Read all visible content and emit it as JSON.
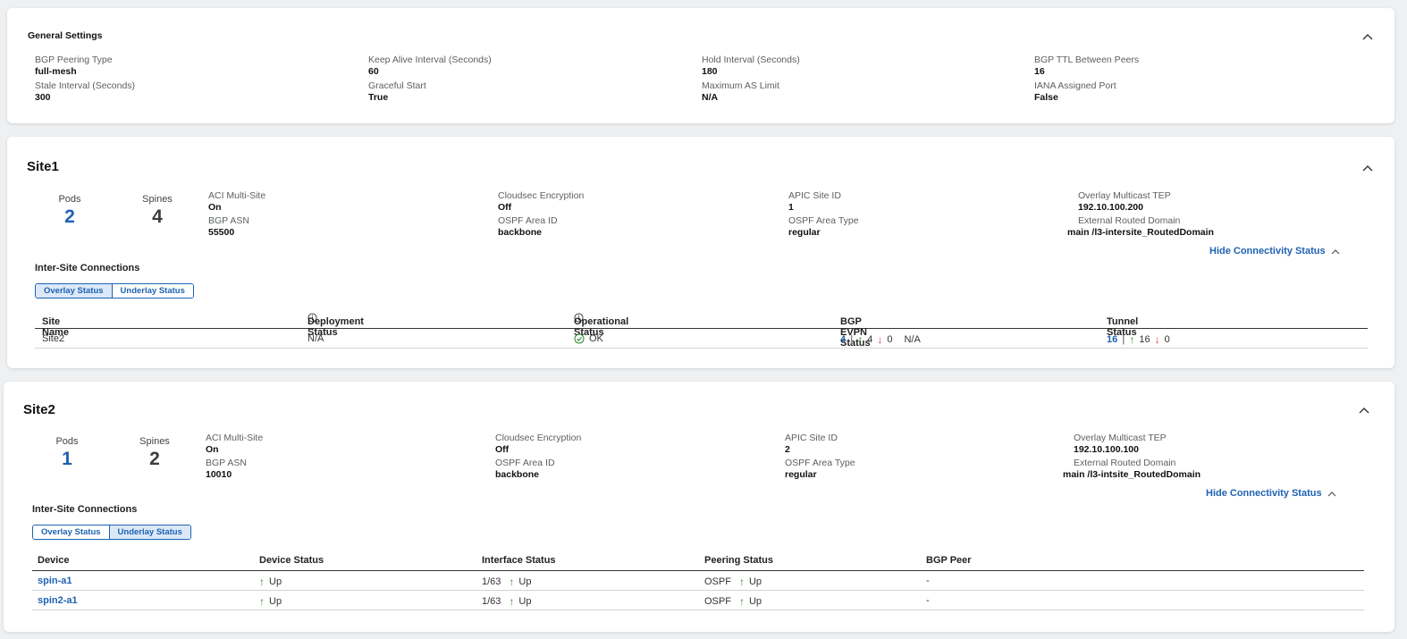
{
  "general": {
    "title": "General Settings",
    "fields": [
      {
        "label": "BGP Peering Type",
        "value": "full-mesh"
      },
      {
        "label": "Keep Alive Interval (Seconds)",
        "value": "60"
      },
      {
        "label": "Hold Interval (Seconds)",
        "value": "180"
      },
      {
        "label": "BGP TTL Between Peers",
        "value": "16"
      },
      {
        "label": "Stale Interval (Seconds)",
        "value": "300"
      },
      {
        "label": "Graceful Start",
        "value": "True"
      },
      {
        "label": "Maximum AS Limit",
        "value": "N/A"
      },
      {
        "label": "IANA Assigned Port",
        "value": "False"
      }
    ]
  },
  "site1": {
    "title": "Site1",
    "pods_label": "Pods",
    "pods": "2",
    "spines_label": "Spines",
    "spines": "4",
    "fields": [
      {
        "label": "ACI Multi-Site",
        "value": "On"
      },
      {
        "label": "Cloudsec Encryption",
        "value": "Off"
      },
      {
        "label": "APIC Site ID",
        "value": "1"
      },
      {
        "label": "Overlay Multicast TEP",
        "value": "192.10.100.200"
      },
      {
        "label": "BGP ASN",
        "value": "55500"
      },
      {
        "label": "OSPF Area ID",
        "value": "backbone"
      },
      {
        "label": "OSPF Area Type",
        "value": "regular"
      },
      {
        "label": "External Routed Domain",
        "value": "main /l3-intersite_RoutedDomain"
      }
    ],
    "hide_link": "Hide Connectivity Status",
    "connections_label": "Inter-Site Connections",
    "toggle": [
      "Overlay Status",
      "Underlay Status"
    ],
    "columns": [
      "Site Name",
      "Deployment Status",
      "Operational Status",
      "BGP EVPN Status",
      "Tunnel Status"
    ],
    "row": {
      "site": "Site2",
      "deployment": "N/A",
      "operational": "OK",
      "evpn_total": "4",
      "evpn_up": "4",
      "evpn_down": "0",
      "evpn_extra": "N/A",
      "tunnel_total": "16",
      "tunnel_up": "16",
      "tunnel_down": "0"
    }
  },
  "site2": {
    "title": "Site2",
    "pods_label": "Pods",
    "pods": "1",
    "spines_label": "Spines",
    "spines": "2",
    "fields": [
      {
        "label": "ACI Multi-Site",
        "value": "On"
      },
      {
        "label": "Cloudsec Encryption",
        "value": "Off"
      },
      {
        "label": "APIC Site ID",
        "value": "2"
      },
      {
        "label": "Overlay Multicast TEP",
        "value": "192.10.100.100"
      },
      {
        "label": "BGP ASN",
        "value": "10010"
      },
      {
        "label": "OSPF Area ID",
        "value": "backbone"
      },
      {
        "label": "OSPF Area Type",
        "value": "regular"
      },
      {
        "label": "External Routed Domain",
        "value": "main /l3-intsite_RoutedDomain"
      }
    ],
    "hide_link": "Hide Connectivity Status",
    "connections_label": "Inter-Site Connections",
    "toggle": [
      "Overlay Status",
      "Underlay Status"
    ],
    "columns": [
      "Device",
      "Device Status",
      "Interface Status",
      "Peering Status",
      "BGP Peer"
    ],
    "rows": [
      {
        "device": "spin-a1",
        "device_status": "Up",
        "iface": "1/63",
        "iface_status": "Up",
        "peering": "OSPF",
        "peering_status": "Up",
        "bgp_peer": "-"
      },
      {
        "device": "spin2-a1",
        "device_status": "Up",
        "iface": "1/63",
        "iface_status": "Up",
        "peering": "OSPF",
        "peering_status": "Up",
        "bgp_peer": "-"
      }
    ]
  },
  "arrows": {
    "up": "↑",
    "down": "↓"
  },
  "colors": {
    "accent": "#1e62b3",
    "up": "#2e8b2e",
    "down": "#d63b2f"
  }
}
